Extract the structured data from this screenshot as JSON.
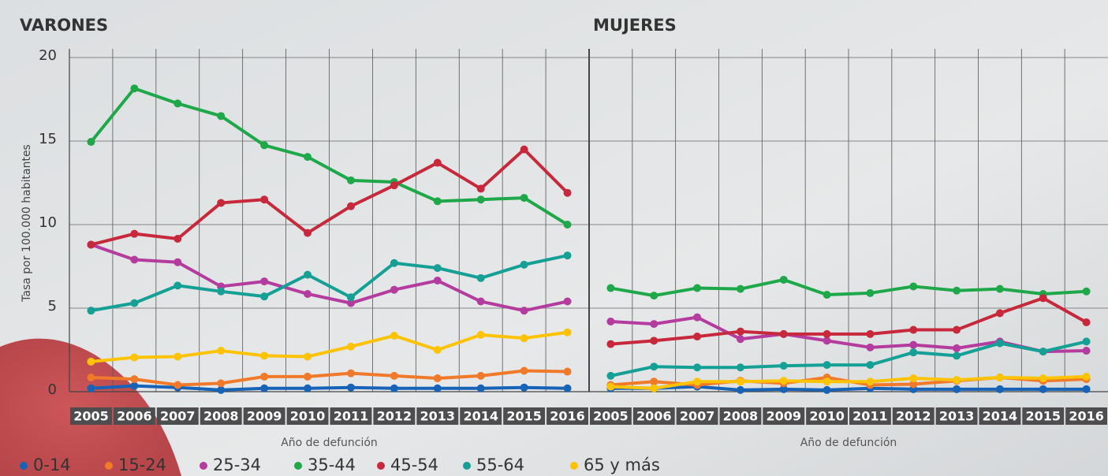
{
  "chart_data": [
    {
      "type": "line",
      "title": "VARONES",
      "x_label": "Año de defunción",
      "y_label": "Tasa por 100.000 habitantes",
      "categories": [
        "2005",
        "2006",
        "2007",
        "2008",
        "2009",
        "2010",
        "2011",
        "2012",
        "2013",
        "2014",
        "2015",
        "2016"
      ],
      "ylim": [
        0,
        20
      ],
      "yticks": [
        0,
        5,
        10,
        15,
        20
      ],
      "grid": true,
      "series": [
        {
          "name": "0-14",
          "color": "#1763b8",
          "values": [
            0.2,
            0.35,
            0.25,
            0.1,
            0.2,
            0.2,
            0.25,
            0.2,
            0.2,
            0.2,
            0.25,
            0.2
          ]
        },
        {
          "name": "15-24",
          "color": "#f07a2a",
          "values": [
            0.85,
            0.75,
            0.4,
            0.5,
            0.9,
            0.9,
            1.1,
            0.95,
            0.8,
            0.95,
            1.25,
            1.2
          ]
        },
        {
          "name": "25-34",
          "color": "#b43c9e",
          "values": [
            8.8,
            7.9,
            7.75,
            6.3,
            6.6,
            5.85,
            5.3,
            6.1,
            6.65,
            5.4,
            4.85,
            5.4
          ]
        },
        {
          "name": "35-44",
          "color": "#1ea84a",
          "values": [
            14.95,
            18.15,
            17.25,
            16.5,
            14.75,
            14.05,
            12.65,
            12.55,
            11.4,
            11.5,
            11.6,
            10.0
          ]
        },
        {
          "name": "45-54",
          "color": "#c8283c",
          "values": [
            8.8,
            9.45,
            9.15,
            11.3,
            11.5,
            9.5,
            11.1,
            12.35,
            13.7,
            12.15,
            14.5,
            11.9
          ]
        },
        {
          "name": "55-64",
          "color": "#15a096",
          "values": [
            4.85,
            5.3,
            6.35,
            6.0,
            5.7,
            7.0,
            5.65,
            7.7,
            7.4,
            6.8,
            7.6,
            8.15
          ]
        },
        {
          "name": "65 y más",
          "color": "#fdc300",
          "values": [
            1.8,
            2.05,
            2.1,
            2.45,
            2.15,
            2.1,
            2.7,
            3.35,
            2.5,
            3.4,
            3.2,
            3.55
          ]
        }
      ]
    },
    {
      "type": "line",
      "title": "MUJERES",
      "x_label": "Año de defunción",
      "categories": [
        "2005",
        "2006",
        "2007",
        "2008",
        "2009",
        "2010",
        "2011",
        "2012",
        "2013",
        "2014",
        "2015",
        "2016"
      ],
      "ylim": [
        0,
        20
      ],
      "yticks": [
        0,
        5,
        10,
        15,
        20
      ],
      "grid": true,
      "series": [
        {
          "color": "#1763b8",
          "values": [
            0.2,
            0.2,
            0.3,
            0.1,
            0.15,
            0.1,
            0.2,
            0.15,
            0.15,
            0.15,
            0.15,
            0.15
          ]
        },
        {
          "color": "#f07a2a",
          "values": [
            0.4,
            0.6,
            0.4,
            0.65,
            0.5,
            0.85,
            0.4,
            0.45,
            0.65,
            0.85,
            0.65,
            0.75
          ]
        },
        {
          "color": "#b43c9e",
          "values": [
            4.2,
            4.05,
            4.45,
            3.15,
            3.45,
            3.05,
            2.65,
            2.8,
            2.6,
            3.0,
            2.4,
            2.45
          ]
        },
        {
          "color": "#1ea84a",
          "values": [
            6.2,
            5.75,
            6.2,
            6.15,
            6.7,
            5.8,
            5.9,
            6.3,
            6.05,
            6.15,
            5.85,
            6.0
          ]
        },
        {
          "color": "#c8283c",
          "values": [
            2.85,
            3.05,
            3.3,
            3.6,
            3.45,
            3.45,
            3.45,
            3.7,
            3.7,
            4.7,
            5.6,
            4.15
          ]
        },
        {
          "color": "#15a096",
          "values": [
            0.95,
            1.5,
            1.45,
            1.45,
            1.55,
            1.6,
            1.6,
            2.35,
            2.15,
            2.9,
            2.4,
            3.0
          ]
        },
        {
          "color": "#fdc300",
          "values": [
            0.3,
            0.2,
            0.6,
            0.6,
            0.65,
            0.6,
            0.6,
            0.8,
            0.7,
            0.85,
            0.8,
            0.9
          ]
        }
      ]
    }
  ]
}
